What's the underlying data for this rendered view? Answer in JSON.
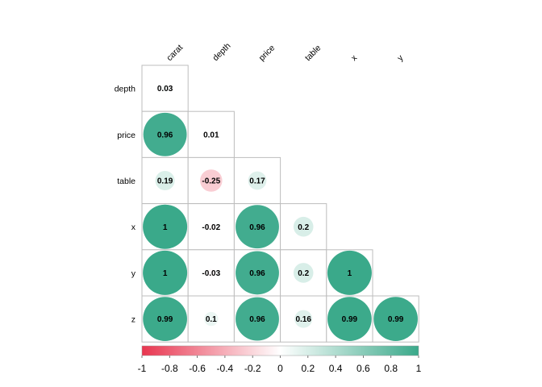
{
  "chart_data": {
    "type": "heatmap",
    "title": "",
    "columns": [
      "carat",
      "depth",
      "price",
      "table",
      "x",
      "y"
    ],
    "rows": [
      "depth",
      "price",
      "table",
      "x",
      "y",
      "z"
    ],
    "values": [
      [
        0.03,
        null,
        null,
        null,
        null,
        null
      ],
      [
        0.96,
        0.01,
        null,
        null,
        null,
        null
      ],
      [
        0.19,
        -0.25,
        0.17,
        null,
        null,
        null
      ],
      [
        1,
        -0.02,
        0.96,
        0.2,
        null,
        null
      ],
      [
        1,
        -0.03,
        0.96,
        0.2,
        1,
        null
      ],
      [
        0.99,
        0.1,
        0.96,
        0.16,
        0.99,
        0.99
      ]
    ],
    "labels": [
      [
        "0.03",
        null,
        null,
        null,
        null,
        null
      ],
      [
        "0.96",
        "0.01",
        null,
        null,
        null,
        null
      ],
      [
        "0.19",
        "-0.25",
        "0.17",
        null,
        null,
        null
      ],
      [
        "1",
        "-0.02",
        "0.96",
        "0.2",
        null,
        null
      ],
      [
        "1",
        "-0.03",
        "0.96",
        "0.2",
        "1",
        null
      ],
      [
        "0.99",
        "0.1",
        "0.96",
        "0.16",
        "0.99",
        "0.99"
      ]
    ],
    "colorbar": {
      "range": [
        -1,
        1
      ],
      "ticks": [
        "-1",
        "-0.8",
        "-0.6",
        "-0.4",
        "-0.2",
        "0",
        "0.2",
        "0.4",
        "0.6",
        "0.8",
        "1"
      ],
      "low_color": "#E8354F",
      "mid_color": "#FFFFFF",
      "high_color": "#3AA98A"
    },
    "marker": "circle (size proportional to |correlation|)",
    "grid": true
  }
}
